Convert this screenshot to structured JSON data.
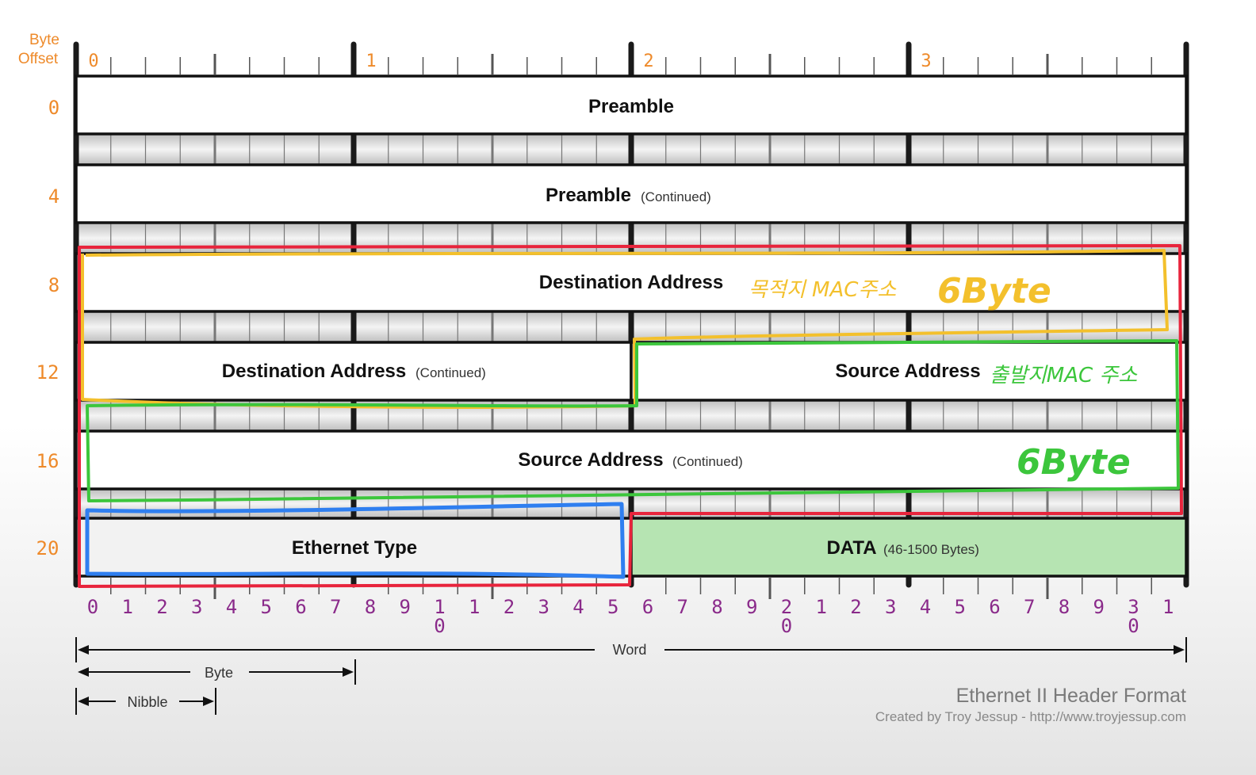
{
  "header": {
    "byte_offset_label": [
      "Byte",
      "Offset"
    ],
    "byte_markers": [
      "0",
      "1",
      "2",
      "3"
    ]
  },
  "row_offsets": [
    "0",
    "4",
    "8",
    "12",
    "16",
    "20"
  ],
  "fields": {
    "preamble": {
      "label": "Preamble",
      "note": ""
    },
    "preamble_cont": {
      "label": "Preamble",
      "note": "(Continued)"
    },
    "dest": {
      "label": "Destination Address",
      "note": ""
    },
    "dest_cont": {
      "label": "Destination Address",
      "note": "(Continued)"
    },
    "src": {
      "label": "Source Address",
      "note": ""
    },
    "src_cont": {
      "label": "Source Address",
      "note": "(Continued)"
    },
    "ethertype": {
      "label": "Ethernet Type",
      "note": ""
    },
    "data": {
      "label": "DATA",
      "note": "(46-1500 Bytes)"
    }
  },
  "bit_numbers": [
    "0",
    "1",
    "2",
    "3",
    "4",
    "5",
    "6",
    "7",
    "8",
    "9",
    "1",
    "1",
    "2",
    "3",
    "4",
    "5",
    "6",
    "7",
    "8",
    "9",
    "2",
    "1",
    "2",
    "3",
    "4",
    "5",
    "6",
    "7",
    "8",
    "9",
    "3",
    "1"
  ],
  "bit_second_line": {
    "10": "0",
    "20": "0",
    "30": "0"
  },
  "scale": {
    "word": "Word",
    "byte": "Byte",
    "nibble": "Nibble"
  },
  "credits": {
    "title": "Ethernet II Header Format",
    "byline": "Created by Troy Jessup - http://www.troyjessup.com"
  },
  "annotations": {
    "dest_mac": "목적지 MAC주소",
    "dest_size": "6Byte",
    "src_mac": "출발지MAC 주소",
    "src_size": "6Byte"
  },
  "colors": {
    "offset_text": "#ee8a2a",
    "bit_text": "#8a2a8a",
    "data_fill": "#b6e4b2",
    "ethertype_fill": "#f2f2f2",
    "highlight_red": "#e8243c",
    "highlight_yellow": "#f3c02c",
    "highlight_green": "#3cc63c",
    "highlight_blue": "#2f7ff0"
  }
}
